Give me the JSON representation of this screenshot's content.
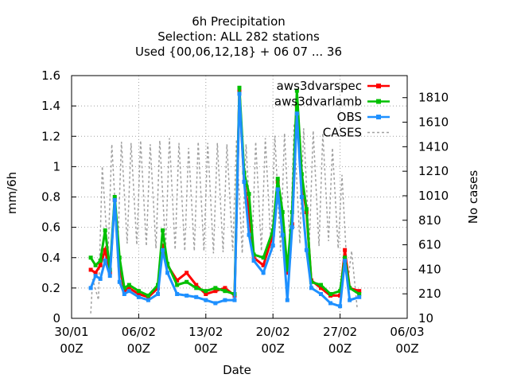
{
  "chart_data": {
    "type": "line",
    "title_lines": [
      "6h Precipitation",
      "Selection: ALL    282 stations",
      "Used {00,06,12,18} + 06 07 ... 36"
    ],
    "xlabel": "Date",
    "ylabel": "mm/6h",
    "y2label": "No cases",
    "x_ticks": [
      {
        "day": 0,
        "label": "30/01",
        "sub": "00Z"
      },
      {
        "day": 7,
        "label": "06/02",
        "sub": "00Z"
      },
      {
        "day": 14,
        "label": "13/02",
        "sub": "00Z"
      },
      {
        "day": 21,
        "label": "20/02",
        "sub": "00Z"
      },
      {
        "day": 28,
        "label": "27/02",
        "sub": "00Z"
      },
      {
        "day": 35,
        "label": "06/03",
        "sub": "00Z"
      }
    ],
    "xlim_days": [
      0,
      35
    ],
    "ylim": [
      0,
      1.6
    ],
    "y_ticks": [
      "0",
      "0.2",
      "0.4",
      "0.6",
      "0.8",
      "1",
      "1.2",
      "1.4",
      "1.6"
    ],
    "y2lim": [
      10,
      1990
    ],
    "y2_ticks": [
      "10",
      "210",
      "410",
      "610",
      "810",
      "1010",
      "1210",
      "1410",
      "1610",
      "1810"
    ],
    "grid": true,
    "legend_position": "top-right",
    "series": [
      {
        "name": "aws3dvarspec",
        "color": "#ff0000",
        "marker": "square",
        "points": [
          [
            2,
            0.32
          ],
          [
            2.5,
            0.3
          ],
          [
            3,
            0.35
          ],
          [
            3.5,
            0.45
          ],
          [
            4,
            0.3
          ],
          [
            4.5,
            0.78
          ],
          [
            5,
            0.35
          ],
          [
            5.5,
            0.18
          ],
          [
            6,
            0.2
          ],
          [
            7,
            0.16
          ],
          [
            8,
            0.14
          ],
          [
            9,
            0.2
          ],
          [
            9.5,
            0.48
          ],
          [
            10,
            0.35
          ],
          [
            11,
            0.25
          ],
          [
            12,
            0.3
          ],
          [
            13,
            0.22
          ],
          [
            14,
            0.16
          ],
          [
            15,
            0.18
          ],
          [
            16,
            0.2
          ],
          [
            17,
            0.15
          ],
          [
            17.5,
            1.5
          ],
          [
            18,
            0.9
          ],
          [
            18.5,
            0.7
          ],
          [
            19,
            0.4
          ],
          [
            20,
            0.35
          ],
          [
            21,
            0.55
          ],
          [
            21.5,
            0.9
          ],
          [
            22,
            0.6
          ],
          [
            22.5,
            0.3
          ],
          [
            23,
            0.62
          ],
          [
            23.5,
            1.4
          ],
          [
            24,
            0.9
          ],
          [
            24.5,
            0.7
          ],
          [
            25,
            0.25
          ],
          [
            26,
            0.2
          ],
          [
            27,
            0.15
          ],
          [
            28,
            0.15
          ],
          [
            28.5,
            0.45
          ],
          [
            29,
            0.2
          ],
          [
            30,
            0.18
          ]
        ]
      },
      {
        "name": "aws3dvarlamb",
        "color": "#00c000",
        "marker": "square",
        "points": [
          [
            2,
            0.4
          ],
          [
            2.5,
            0.35
          ],
          [
            3,
            0.38
          ],
          [
            3.5,
            0.58
          ],
          [
            4,
            0.32
          ],
          [
            4.5,
            0.8
          ],
          [
            5,
            0.4
          ],
          [
            5.5,
            0.2
          ],
          [
            6,
            0.22
          ],
          [
            7,
            0.18
          ],
          [
            8,
            0.15
          ],
          [
            9,
            0.22
          ],
          [
            9.5,
            0.58
          ],
          [
            10,
            0.36
          ],
          [
            11,
            0.22
          ],
          [
            12,
            0.24
          ],
          [
            13,
            0.2
          ],
          [
            14,
            0.18
          ],
          [
            15,
            0.2
          ],
          [
            16,
            0.18
          ],
          [
            17,
            0.16
          ],
          [
            17.5,
            1.52
          ],
          [
            18,
            0.96
          ],
          [
            18.5,
            0.82
          ],
          [
            19,
            0.42
          ],
          [
            20,
            0.4
          ],
          [
            21,
            0.58
          ],
          [
            21.5,
            0.92
          ],
          [
            22,
            0.7
          ],
          [
            22.5,
            0.32
          ],
          [
            23,
            0.7
          ],
          [
            23.5,
            1.5
          ],
          [
            24,
            0.95
          ],
          [
            24.5,
            0.72
          ],
          [
            25,
            0.24
          ],
          [
            26,
            0.22
          ],
          [
            27,
            0.16
          ],
          [
            28,
            0.18
          ],
          [
            28.5,
            0.4
          ],
          [
            29,
            0.2
          ],
          [
            30,
            0.16
          ]
        ]
      },
      {
        "name": "OBS",
        "color": "#1e90ff",
        "marker": "square",
        "points": [
          [
            2,
            0.2
          ],
          [
            2.5,
            0.28
          ],
          [
            3,
            0.26
          ],
          [
            3.5,
            0.38
          ],
          [
            4,
            0.28
          ],
          [
            4.5,
            0.78
          ],
          [
            5,
            0.24
          ],
          [
            5.5,
            0.16
          ],
          [
            6,
            0.18
          ],
          [
            7,
            0.14
          ],
          [
            8,
            0.12
          ],
          [
            9,
            0.16
          ],
          [
            9.5,
            0.45
          ],
          [
            10,
            0.3
          ],
          [
            11,
            0.16
          ],
          [
            12,
            0.15
          ],
          [
            13,
            0.14
          ],
          [
            14,
            0.12
          ],
          [
            15,
            0.1
          ],
          [
            16,
            0.12
          ],
          [
            17,
            0.12
          ],
          [
            17.5,
            1.48
          ],
          [
            18,
            0.9
          ],
          [
            18.5,
            0.55
          ],
          [
            19,
            0.38
          ],
          [
            20,
            0.3
          ],
          [
            21,
            0.48
          ],
          [
            21.5,
            0.85
          ],
          [
            22,
            0.55
          ],
          [
            22.5,
            0.12
          ],
          [
            23,
            0.6
          ],
          [
            23.5,
            1.35
          ],
          [
            24,
            0.8
          ],
          [
            24.5,
            0.45
          ],
          [
            25,
            0.2
          ],
          [
            26,
            0.16
          ],
          [
            27,
            0.1
          ],
          [
            28,
            0.08
          ],
          [
            28.5,
            0.38
          ],
          [
            29,
            0.12
          ],
          [
            30,
            0.14
          ]
        ]
      },
      {
        "name": "CASES",
        "color": "#a0a0a0",
        "marker": "none",
        "axis": "y2",
        "points": [
          [
            2,
            50
          ],
          [
            2.2,
            330
          ],
          [
            2.8,
            160
          ],
          [
            3.2,
            1250
          ],
          [
            3.8,
            520
          ],
          [
            4.2,
            1430
          ],
          [
            4.8,
            560
          ],
          [
            5.2,
            1450
          ],
          [
            5.8,
            620
          ],
          [
            6.2,
            1440
          ],
          [
            6.8,
            610
          ],
          [
            7.2,
            1460
          ],
          [
            7.8,
            600
          ],
          [
            8.2,
            1430
          ],
          [
            8.8,
            580
          ],
          [
            9.2,
            1460
          ],
          [
            9.8,
            580
          ],
          [
            10.2,
            1480
          ],
          [
            10.8,
            570
          ],
          [
            11.2,
            1440
          ],
          [
            11.8,
            560
          ],
          [
            12.2,
            1400
          ],
          [
            12.8,
            560
          ],
          [
            13.2,
            1450
          ],
          [
            13.8,
            560
          ],
          [
            14.2,
            1440
          ],
          [
            14.8,
            540
          ],
          [
            15.2,
            1440
          ],
          [
            15.8,
            550
          ],
          [
            16.2,
            1430
          ],
          [
            16.8,
            560
          ],
          [
            17.2,
            1470
          ],
          [
            17.8,
            540
          ],
          [
            18.2,
            1430
          ],
          [
            18.8,
            540
          ],
          [
            19.2,
            1450
          ],
          [
            19.8,
            560
          ],
          [
            20.2,
            1480
          ],
          [
            20.8,
            580
          ],
          [
            21.2,
            1500
          ],
          [
            21.8,
            560
          ],
          [
            22.2,
            1520
          ],
          [
            22.8,
            570
          ],
          [
            23.2,
            1600
          ],
          [
            23.8,
            620
          ],
          [
            24.2,
            1560
          ],
          [
            24.8,
            620
          ],
          [
            25.2,
            1540
          ],
          [
            25.8,
            600
          ],
          [
            26.2,
            1520
          ],
          [
            26.8,
            640
          ],
          [
            27.2,
            1400
          ],
          [
            27.8,
            580
          ],
          [
            28.2,
            1180
          ],
          [
            28.8,
            300
          ],
          [
            29.2,
            560
          ],
          [
            29.8,
            80
          ]
        ]
      }
    ]
  }
}
